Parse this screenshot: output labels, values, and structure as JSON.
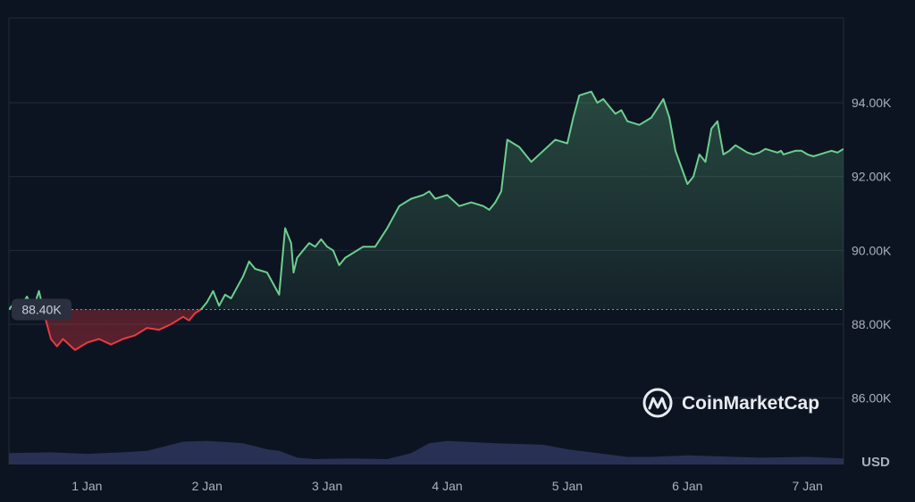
{
  "chart_data": {
    "type": "area",
    "baseline_label": "88.40K",
    "baseline_value": 88.4,
    "currency_label": "USD",
    "watermark": "CoinMarketCap",
    "x_tick_labels": [
      "1 Jan",
      "2 Jan",
      "3 Jan",
      "4 Jan",
      "5 Jan",
      "6 Jan",
      "7 Jan"
    ],
    "y_tick_labels": [
      "94.00K",
      "92.00K",
      "90.00K",
      "88.00K",
      "86.00K"
    ],
    "y_tick_values": [
      94,
      92,
      90,
      88,
      86
    ],
    "ylim": [
      84.2,
      96.3
    ],
    "xlim": [
      -0.65,
      6.3
    ],
    "grid": true,
    "colors": {
      "background": "#0d1421",
      "up": "#6ccf8e",
      "down": "#ea3943",
      "grid": "#222a3a",
      "text": "#a8b0bf",
      "volume": "#2a3356"
    },
    "series": [
      {
        "name": "Price",
        "x": [
          -0.65,
          -0.6,
          -0.55,
          -0.5,
          -0.45,
          -0.4,
          -0.35,
          -0.3,
          -0.25,
          -0.2,
          -0.1,
          0.0,
          0.1,
          0.2,
          0.3,
          0.4,
          0.5,
          0.6,
          0.7,
          0.8,
          0.85,
          0.9,
          0.95,
          1.0,
          1.05,
          1.1,
          1.15,
          1.2,
          1.25,
          1.3,
          1.35,
          1.4,
          1.5,
          1.6,
          1.65,
          1.7,
          1.72,
          1.75,
          1.8,
          1.85,
          1.9,
          1.95,
          2.0,
          2.05,
          2.1,
          2.15,
          2.2,
          2.3,
          2.4,
          2.5,
          2.6,
          2.7,
          2.8,
          2.85,
          2.9,
          3.0,
          3.1,
          3.2,
          3.3,
          3.35,
          3.4,
          3.45,
          3.5,
          3.6,
          3.7,
          3.8,
          3.9,
          4.0,
          4.05,
          4.1,
          4.2,
          4.25,
          4.3,
          4.35,
          4.4,
          4.45,
          4.5,
          4.6,
          4.7,
          4.8,
          4.85,
          4.9,
          5.0,
          5.05,
          5.1,
          5.15,
          5.2,
          5.25,
          5.3,
          5.35,
          5.4,
          5.5,
          5.55,
          5.6,
          5.65,
          5.7,
          5.75,
          5.78,
          5.8,
          5.85,
          5.9,
          5.95,
          6.0,
          6.05,
          6.1,
          6.15,
          6.2,
          6.25,
          6.3
        ],
        "y": [
          88.4,
          88.6,
          88.5,
          88.75,
          88.4,
          88.9,
          88.2,
          87.6,
          87.4,
          87.6,
          87.3,
          87.5,
          87.6,
          87.45,
          87.6,
          87.7,
          87.9,
          87.85,
          88.0,
          88.2,
          88.1,
          88.3,
          88.4,
          88.6,
          88.9,
          88.5,
          88.8,
          88.7,
          89.0,
          89.3,
          89.7,
          89.5,
          89.4,
          88.8,
          90.6,
          90.2,
          89.4,
          89.8,
          90.0,
          90.2,
          90.1,
          90.3,
          90.1,
          90.0,
          89.6,
          89.8,
          89.9,
          90.1,
          90.1,
          90.6,
          91.2,
          91.4,
          91.5,
          91.6,
          91.4,
          91.5,
          91.2,
          91.3,
          91.2,
          91.1,
          91.3,
          91.6,
          93.0,
          92.8,
          92.4,
          92.7,
          93.0,
          92.9,
          93.6,
          94.2,
          94.3,
          94.0,
          94.1,
          93.9,
          93.7,
          93.8,
          93.5,
          93.4,
          93.6,
          94.1,
          93.6,
          92.7,
          91.8,
          92.0,
          92.6,
          92.4,
          93.3,
          93.5,
          92.6,
          92.7,
          92.85,
          92.65,
          92.6,
          92.65,
          92.75,
          92.7,
          92.65,
          92.7,
          92.6,
          92.65,
          92.7,
          92.7,
          92.6,
          92.55,
          92.6,
          92.65,
          92.7,
          92.65,
          92.75
        ]
      },
      {
        "name": "Volume",
        "x": [
          -0.65,
          -0.3,
          0.0,
          0.3,
          0.5,
          0.8,
          1.0,
          1.3,
          1.5,
          1.6,
          1.75,
          1.9,
          2.2,
          2.5,
          2.7,
          2.85,
          3.0,
          3.4,
          3.8,
          4.0,
          4.5,
          4.7,
          5.0,
          5.6,
          6.0,
          6.3
        ],
        "y": [
          0.85,
          0.84,
          0.86,
          0.84,
          0.82,
          0.7,
          0.69,
          0.72,
          0.8,
          0.82,
          0.91,
          0.93,
          0.92,
          0.93,
          0.85,
          0.72,
          0.69,
          0.72,
          0.74,
          0.8,
          0.9,
          0.9,
          0.88,
          0.91,
          0.9,
          0.92
        ]
      }
    ]
  }
}
